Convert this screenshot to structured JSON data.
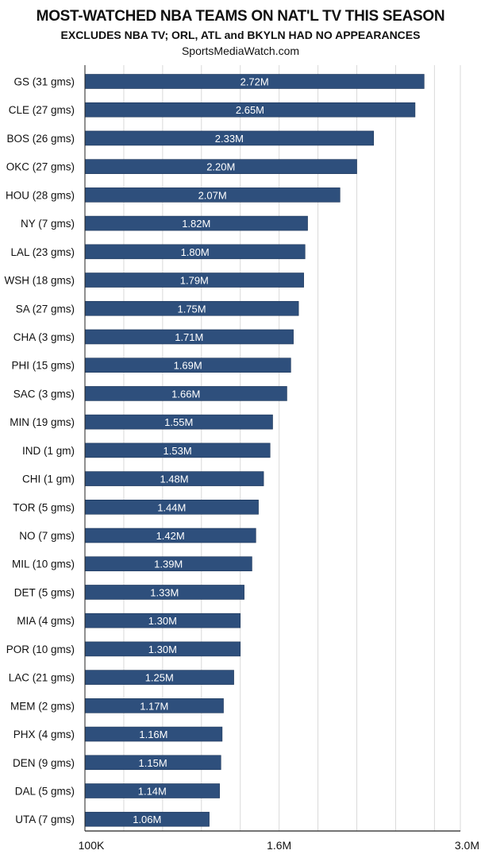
{
  "title": "MOST-WATCHED NBA TEAMS ON NAT'L TV THIS SEASON",
  "subtitle": "EXCLUDES NBA TV; ORL, ATL and BKYLN HAD NO APPEARANCES",
  "source": "SportsMediaWatch.com",
  "colors": {
    "bar": "#2e4f7c",
    "grid": "#d9d9d9",
    "axis": "#222222"
  },
  "chart_data": {
    "type": "bar",
    "orientation": "horizontal",
    "categories": [
      "GS (31 gms)",
      "CLE (27 gms)",
      "BOS (26 gms)",
      "OKC (27 gms)",
      "HOU (28 gms)",
      "NY (7 gms)",
      "LAL (23 gms)",
      "WSH (18 gms)",
      "SA (27 gms)",
      "CHA (3 gms)",
      "PHI (15 gms)",
      "SAC (3 gms)",
      "MIN (19 gms)",
      "IND (1 gm)",
      "CHI (1 gm)",
      "TOR (5 gms)",
      "NO (7 gms)",
      "MIL (10 gms)",
      "DET (5 gms)",
      "MIA (4 gms)",
      "POR (10 gms)",
      "LAC (21 gms)",
      "MEM (2 gms)",
      "PHX (4 gms)",
      "DEN (9 gms)",
      "DAL (5 gms)",
      "UTA (7 gms)"
    ],
    "values": [
      2.72,
      2.65,
      2.33,
      2.2,
      2.07,
      1.82,
      1.8,
      1.79,
      1.75,
      1.71,
      1.69,
      1.66,
      1.55,
      1.53,
      1.48,
      1.44,
      1.42,
      1.39,
      1.33,
      1.3,
      1.3,
      1.25,
      1.17,
      1.16,
      1.15,
      1.14,
      1.06
    ],
    "value_labels": [
      "2.72M",
      "2.65M",
      "2.33M",
      "2.20M",
      "2.07M",
      "1.82M",
      "1.80M",
      "1.79M",
      "1.75M",
      "1.71M",
      "1.69M",
      "1.66M",
      "1.55M",
      "1.53M",
      "1.48M",
      "1.44M",
      "1.42M",
      "1.39M",
      "1.33M",
      "1.30M",
      "1.30M",
      "1.25M",
      "1.17M",
      "1.16M",
      "1.15M",
      "1.14M",
      "1.06M"
    ],
    "unit": "millions of viewers",
    "xlim": [
      0.1,
      3.0
    ],
    "ticks": [
      {
        "value": 0.1,
        "label": "100K"
      },
      {
        "value": 1.6,
        "label": "1.6M"
      },
      {
        "value": 3.0,
        "label": "3.0M"
      }
    ],
    "grid_values": [
      0.1,
      0.4,
      0.7,
      1.0,
      1.3,
      1.6,
      1.9,
      2.2,
      2.5,
      2.8,
      3.0
    ],
    "grid": true
  }
}
